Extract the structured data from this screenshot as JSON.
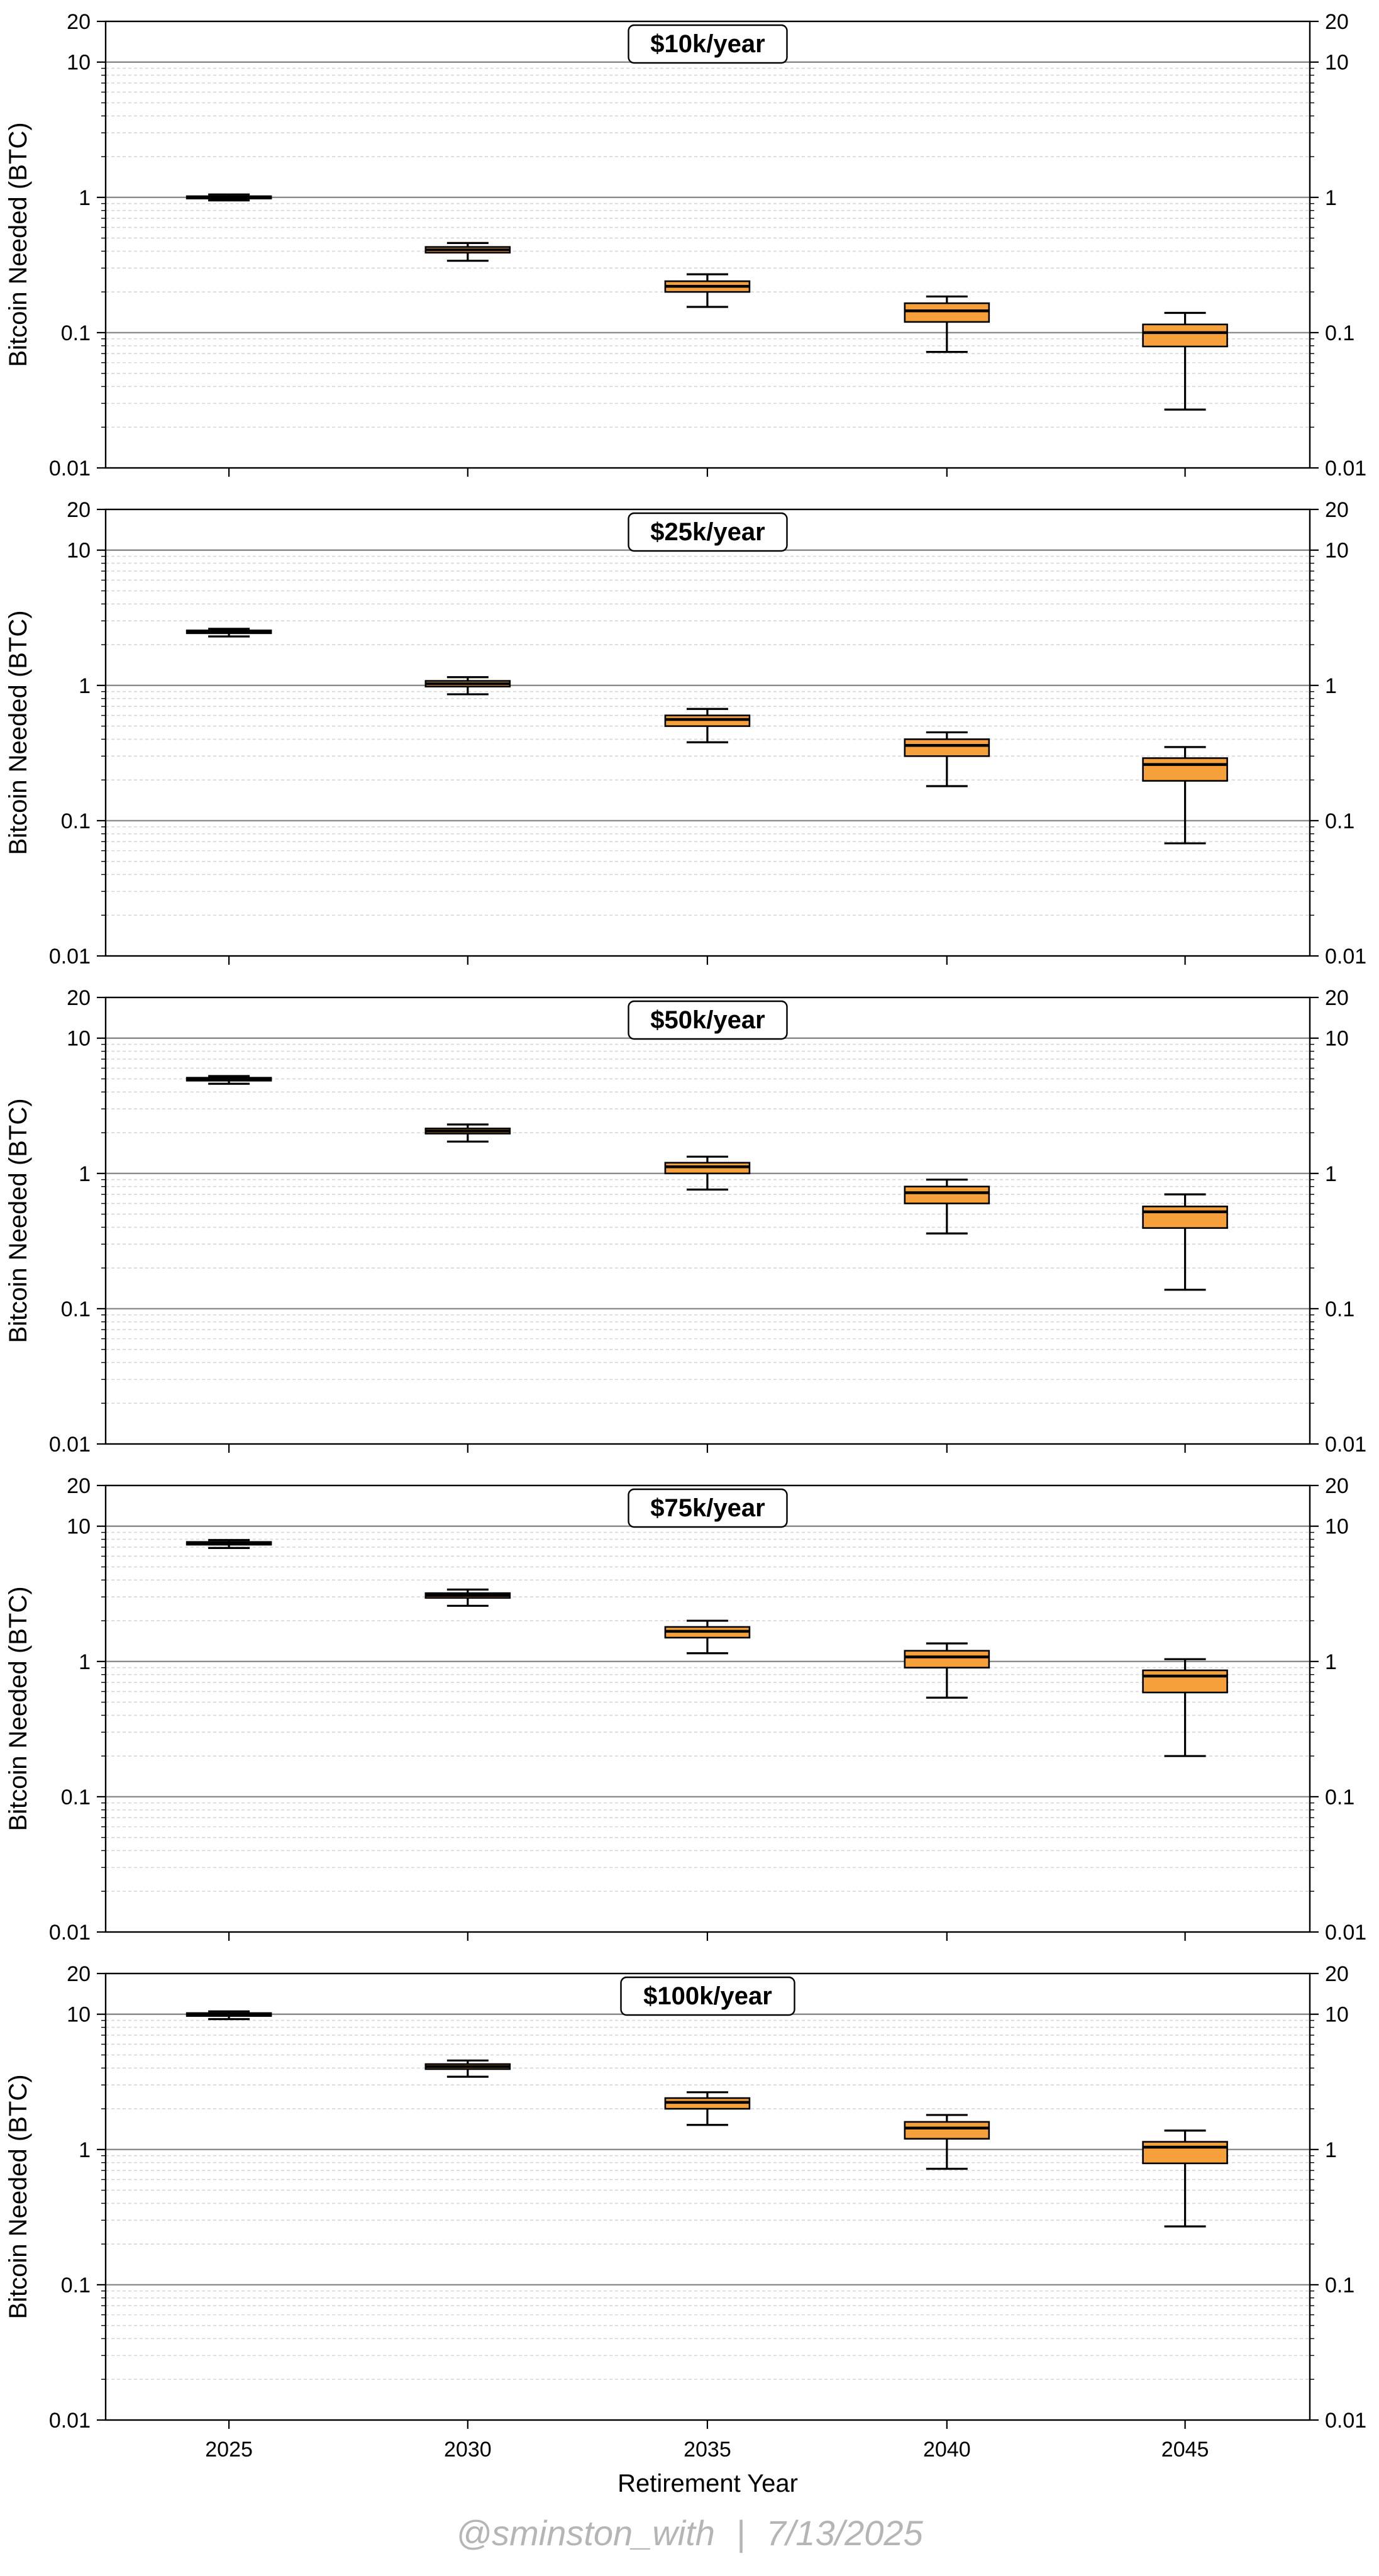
{
  "chart_data": [
    {
      "type": "boxplot",
      "title": "$10k/year",
      "ylabel": "Bitcoin Needed (BTC)",
      "xlabel": "",
      "yscale": "log",
      "ylim": [
        0.01,
        20
      ],
      "yticks": [
        "0.01",
        "0.1",
        "1",
        "10",
        "20"
      ],
      "categories": [
        "2025",
        "2030",
        "2035",
        "2040",
        "2045"
      ],
      "boxes": [
        {
          "whislo": 0.95,
          "q1": 0.98,
          "med": 1.0,
          "q3": 1.02,
          "whishi": 1.05
        },
        {
          "whislo": 0.34,
          "q1": 0.39,
          "med": 0.41,
          "q3": 0.43,
          "whishi": 0.46
        },
        {
          "whislo": 0.155,
          "q1": 0.2,
          "med": 0.22,
          "q3": 0.24,
          "whishi": 0.27
        },
        {
          "whislo": 0.072,
          "q1": 0.12,
          "med": 0.145,
          "q3": 0.165,
          "whishi": 0.185
        },
        {
          "whislo": 0.027,
          "q1": 0.079,
          "med": 0.1,
          "q3": 0.115,
          "whishi": 0.14
        }
      ],
      "grid": "log-major-and-minor",
      "box_color": "#f5a03a"
    },
    {
      "type": "boxplot",
      "title": "$25k/year",
      "ylabel": "Bitcoin Needed (BTC)",
      "xlabel": "",
      "yscale": "log",
      "ylim": [
        0.01,
        20
      ],
      "yticks": [
        "0.01",
        "0.1",
        "1",
        "10",
        "20"
      ],
      "categories": [
        "2025",
        "2030",
        "2035",
        "2040",
        "2045"
      ],
      "boxes": [
        {
          "whislo": 2.3,
          "q1": 2.43,
          "med": 2.5,
          "q3": 2.55,
          "whishi": 2.62
        },
        {
          "whislo": 0.86,
          "q1": 0.98,
          "med": 1.03,
          "q3": 1.08,
          "whishi": 1.15
        },
        {
          "whislo": 0.38,
          "q1": 0.5,
          "med": 0.56,
          "q3": 0.6,
          "whishi": 0.67
        },
        {
          "whislo": 0.18,
          "q1": 0.3,
          "med": 0.36,
          "q3": 0.4,
          "whishi": 0.45
        },
        {
          "whislo": 0.068,
          "q1": 0.197,
          "med": 0.26,
          "q3": 0.29,
          "whishi": 0.35
        }
      ],
      "grid": "log-major-and-minor",
      "box_color": "#f5a03a"
    },
    {
      "type": "boxplot",
      "title": "$50k/year",
      "ylabel": "Bitcoin Needed (BTC)",
      "xlabel": "",
      "yscale": "log",
      "ylim": [
        0.01,
        20
      ],
      "yticks": [
        "0.01",
        "0.1",
        "1",
        "10",
        "20"
      ],
      "categories": [
        "2025",
        "2030",
        "2035",
        "2040",
        "2045"
      ],
      "boxes": [
        {
          "whislo": 4.6,
          "q1": 4.85,
          "med": 5.0,
          "q3": 5.1,
          "whishi": 5.25
        },
        {
          "whislo": 1.72,
          "q1": 1.97,
          "med": 2.06,
          "q3": 2.15,
          "whishi": 2.3
        },
        {
          "whislo": 0.76,
          "q1": 1.0,
          "med": 1.12,
          "q3": 1.2,
          "whishi": 1.33
        },
        {
          "whislo": 0.36,
          "q1": 0.6,
          "med": 0.72,
          "q3": 0.8,
          "whishi": 0.9
        },
        {
          "whislo": 0.138,
          "q1": 0.395,
          "med": 0.52,
          "q3": 0.57,
          "whishi": 0.7
        }
      ],
      "grid": "log-major-and-minor",
      "box_color": "#f5a03a"
    },
    {
      "type": "boxplot",
      "title": "$75k/year",
      "ylabel": "Bitcoin Needed (BTC)",
      "xlabel": "",
      "yscale": "log",
      "ylim": [
        0.01,
        20
      ],
      "yticks": [
        "0.01",
        "0.1",
        "1",
        "10",
        "20"
      ],
      "categories": [
        "2025",
        "2030",
        "2035",
        "2040",
        "2045"
      ],
      "boxes": [
        {
          "whislo": 6.9,
          "q1": 7.3,
          "med": 7.5,
          "q3": 7.65,
          "whishi": 7.9
        },
        {
          "whislo": 2.58,
          "q1": 2.95,
          "med": 3.08,
          "q3": 3.2,
          "whishi": 3.4
        },
        {
          "whislo": 1.15,
          "q1": 1.5,
          "med": 1.67,
          "q3": 1.8,
          "whishi": 2.0
        },
        {
          "whislo": 0.54,
          "q1": 0.9,
          "med": 1.08,
          "q3": 1.2,
          "whishi": 1.36
        },
        {
          "whislo": 0.2,
          "q1": 0.59,
          "med": 0.78,
          "q3": 0.86,
          "whishi": 1.04
        }
      ],
      "grid": "log-major-and-minor",
      "box_color": "#f5a03a"
    },
    {
      "type": "boxplot",
      "title": "$100k/year",
      "ylabel": "Bitcoin Needed (BTC)",
      "xlabel": "Retirement Year",
      "yscale": "log",
      "ylim": [
        0.01,
        20
      ],
      "yticks": [
        "0.01",
        "0.1",
        "1",
        "10",
        "20"
      ],
      "categories": [
        "2025",
        "2030",
        "2035",
        "2040",
        "2045"
      ],
      "boxes": [
        {
          "whislo": 9.2,
          "q1": 9.7,
          "med": 10.0,
          "q3": 10.2,
          "whishi": 10.5
        },
        {
          "whislo": 3.45,
          "q1": 3.93,
          "med": 4.1,
          "q3": 4.28,
          "whishi": 4.55
        },
        {
          "whislo": 1.52,
          "q1": 2.0,
          "med": 2.23,
          "q3": 2.4,
          "whishi": 2.65
        },
        {
          "whislo": 0.72,
          "q1": 1.2,
          "med": 1.44,
          "q3": 1.6,
          "whishi": 1.8
        },
        {
          "whislo": 0.27,
          "q1": 0.79,
          "med": 1.04,
          "q3": 1.14,
          "whishi": 1.38
        }
      ],
      "grid": "log-major-and-minor",
      "box_color": "#f5a03a"
    }
  ],
  "watermark": {
    "handle": "@sminston_with",
    "separator": "|",
    "date": "7/13/2025"
  }
}
